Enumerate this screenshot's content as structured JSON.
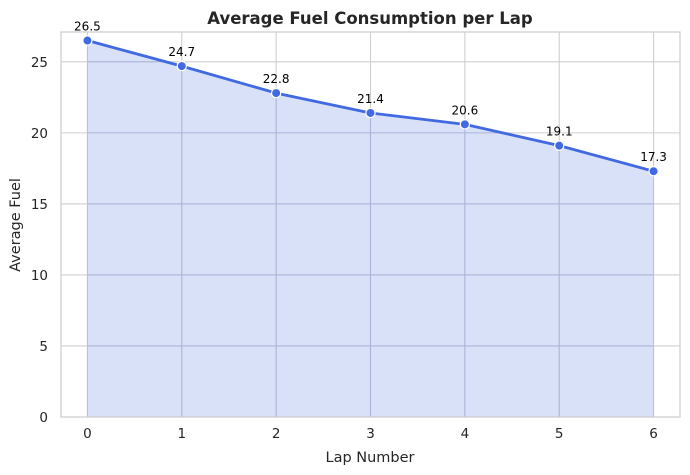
{
  "chart_data": {
    "type": "area",
    "title": "Average Fuel Consumption per Lap",
    "xlabel": "Lap Number",
    "ylabel": "Average Fuel",
    "x": [
      0,
      1,
      2,
      3,
      4,
      5,
      6
    ],
    "series": [
      {
        "values": [
          26.5,
          24.7,
          22.8,
          21.4,
          20.6,
          19.1,
          17.3
        ]
      }
    ],
    "data_labels": [
      "26.5",
      "24.7",
      "22.8",
      "21.4",
      "20.6",
      "19.1",
      "17.3"
    ],
    "xticks": [
      "0",
      "1",
      "2",
      "3",
      "4",
      "5",
      "6"
    ],
    "yticks": [
      "0",
      "5",
      "10",
      "15",
      "20",
      "25"
    ],
    "xlim": [
      -0.28,
      6.28
    ],
    "ylim": [
      0,
      27.1
    ],
    "grid": true,
    "colors": {
      "line": "#4169e1",
      "fill": "#d9e1f8",
      "grid": "#cfcfcf",
      "grid_over_fill": "#aab3d6",
      "frame": "#cccccc"
    }
  }
}
